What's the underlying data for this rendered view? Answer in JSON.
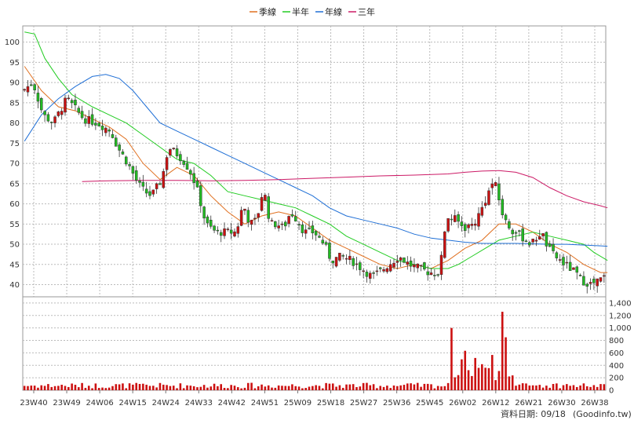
{
  "chart_data": {
    "type": "candlestick",
    "legend": [
      {
        "name": "季線",
        "color": "#e07020"
      },
      {
        "name": "半年",
        "color": "#22cc22"
      },
      {
        "name": "年線",
        "color": "#1f6fd6"
      },
      {
        "name": "三年",
        "color": "#cc1a66"
      }
    ],
    "price_axis": {
      "min": 37,
      "max": 104,
      "ticks": [
        40,
        45,
        50,
        55,
        60,
        65,
        70,
        75,
        80,
        85,
        90,
        95,
        100
      ]
    },
    "volume_axis": {
      "min": 0,
      "max": 1500,
      "ticks": [
        0,
        200,
        400,
        600,
        800,
        1000,
        1200,
        1400
      ],
      "tick_labels": [
        "0",
        "200",
        "400",
        "600",
        "800",
        "1,000",
        "1,200",
        "1,400"
      ]
    },
    "x_labels": [
      "23W40",
      "23W49",
      "24W06",
      "24W15",
      "24W24",
      "24W33",
      "24W42",
      "24W51",
      "25W09",
      "25W18",
      "25W27",
      "25W36",
      "25W45",
      "26W02",
      "26W12",
      "26W21",
      "26W30",
      "26W38"
    ],
    "bar_count": 157,
    "up_color": "#cc1111",
    "down_color": "#22bb22",
    "close_anchors": [
      [
        0,
        88
      ],
      [
        3,
        90
      ],
      [
        6,
        82
      ],
      [
        9,
        80
      ],
      [
        13,
        86
      ],
      [
        18,
        81
      ],
      [
        22,
        80
      ],
      [
        26,
        78
      ],
      [
        28,
        74
      ],
      [
        31,
        70
      ],
      [
        34,
        65
      ],
      [
        36,
        63
      ],
      [
        38,
        62
      ],
      [
        41,
        66
      ],
      [
        43,
        74
      ],
      [
        46,
        72
      ],
      [
        48,
        70
      ],
      [
        50,
        67
      ],
      [
        52,
        62
      ],
      [
        54,
        55
      ],
      [
        57,
        53
      ],
      [
        60,
        53
      ],
      [
        63,
        53
      ],
      [
        65,
        60
      ],
      [
        67,
        55
      ],
      [
        69,
        56
      ],
      [
        71,
        64
      ],
      [
        73,
        55
      ],
      [
        75,
        55
      ],
      [
        77,
        54
      ],
      [
        79,
        58
      ],
      [
        81,
        56
      ],
      [
        83,
        53
      ],
      [
        86,
        53
      ],
      [
        89,
        50
      ],
      [
        91,
        46
      ],
      [
        94,
        47
      ],
      [
        97,
        46
      ],
      [
        100,
        44
      ],
      [
        103,
        42
      ],
      [
        105,
        43
      ],
      [
        108,
        45
      ],
      [
        111,
        47
      ],
      [
        114,
        45
      ],
      [
        117,
        44
      ],
      [
        120,
        43
      ],
      [
        123,
        43
      ],
      [
        125,
        57
      ],
      [
        128,
        56
      ],
      [
        130,
        54
      ],
      [
        133,
        55
      ],
      [
        135,
        58
      ],
      [
        137,
        62
      ],
      [
        139,
        66
      ],
      [
        142,
        56
      ],
      [
        145,
        53
      ],
      [
        147,
        52
      ],
      [
        150,
        50
      ],
      [
        153,
        53
      ],
      [
        155,
        49
      ],
      [
        157,
        47
      ],
      [
        160,
        45
      ],
      [
        163,
        43
      ],
      [
        165,
        41
      ],
      [
        168,
        40
      ],
      [
        172,
        42
      ]
    ],
    "ma_series": [
      {
        "name": "季線",
        "points": [
          [
            0,
            94
          ],
          [
            5,
            88
          ],
          [
            10,
            84
          ],
          [
            15,
            83
          ],
          [
            20,
            81
          ],
          [
            25,
            79
          ],
          [
            30,
            76
          ],
          [
            35,
            70
          ],
          [
            40,
            66
          ],
          [
            45,
            69
          ],
          [
            50,
            67
          ],
          [
            55,
            62
          ],
          [
            60,
            58
          ],
          [
            65,
            55
          ],
          [
            70,
            57
          ],
          [
            75,
            58
          ],
          [
            80,
            57
          ],
          [
            85,
            54
          ],
          [
            90,
            51
          ],
          [
            95,
            49
          ],
          [
            100,
            47
          ],
          [
            105,
            45
          ],
          [
            110,
            44
          ],
          [
            115,
            45
          ],
          [
            120,
            44
          ],
          [
            125,
            46
          ],
          [
            130,
            49
          ],
          [
            135,
            51
          ],
          [
            140,
            55
          ],
          [
            145,
            55
          ],
          [
            150,
            53
          ],
          [
            155,
            50
          ],
          [
            160,
            48
          ],
          [
            165,
            45
          ],
          [
            170,
            43
          ],
          [
            172,
            43
          ]
        ]
      },
      {
        "name": "半年",
        "points": [
          [
            0,
            102.5
          ],
          [
            3,
            102
          ],
          [
            6,
            96
          ],
          [
            10,
            91
          ],
          [
            14,
            87
          ],
          [
            20,
            84
          ],
          [
            25,
            82
          ],
          [
            30,
            80
          ],
          [
            35,
            77
          ],
          [
            40,
            74
          ],
          [
            45,
            71
          ],
          [
            50,
            70
          ],
          [
            55,
            67
          ],
          [
            60,
            63
          ],
          [
            65,
            62
          ],
          [
            70,
            61
          ],
          [
            75,
            60
          ],
          [
            80,
            59
          ],
          [
            85,
            57
          ],
          [
            90,
            55
          ],
          [
            95,
            52
          ],
          [
            100,
            50
          ],
          [
            105,
            48
          ],
          [
            110,
            46
          ],
          [
            115,
            45
          ],
          [
            120,
            44
          ],
          [
            125,
            44
          ],
          [
            128,
            45
          ],
          [
            132,
            47
          ],
          [
            136,
            49
          ],
          [
            140,
            51
          ],
          [
            145,
            52
          ],
          [
            150,
            53
          ],
          [
            155,
            52
          ],
          [
            160,
            51
          ],
          [
            165,
            50
          ],
          [
            168,
            48
          ],
          [
            172,
            46
          ]
        ]
      },
      {
        "name": "年線",
        "points": [
          [
            0,
            75.5
          ],
          [
            5,
            82
          ],
          [
            10,
            86
          ],
          [
            15,
            89
          ],
          [
            20,
            91.5
          ],
          [
            24,
            92
          ],
          [
            28,
            91
          ],
          [
            32,
            88
          ],
          [
            36,
            84
          ],
          [
            40,
            80
          ],
          [
            45,
            78
          ],
          [
            50,
            76
          ],
          [
            55,
            74
          ],
          [
            60,
            72
          ],
          [
            65,
            70
          ],
          [
            70,
            68
          ],
          [
            75,
            66
          ],
          [
            80,
            64
          ],
          [
            85,
            62
          ],
          [
            90,
            59
          ],
          [
            95,
            57
          ],
          [
            100,
            56
          ],
          [
            105,
            55
          ],
          [
            110,
            54
          ],
          [
            115,
            52.5
          ],
          [
            120,
            51.5
          ],
          [
            125,
            51
          ],
          [
            130,
            50.5
          ],
          [
            135,
            50.2
          ],
          [
            140,
            50.2
          ],
          [
            145,
            50.2
          ],
          [
            150,
            50.1
          ],
          [
            155,
            50
          ],
          [
            160,
            50
          ],
          [
            165,
            49.8
          ],
          [
            170,
            49.6
          ],
          [
            172,
            49.5
          ]
        ]
      },
      {
        "name": "三年",
        "points": [
          [
            17,
            65.5
          ],
          [
            25,
            65.7
          ],
          [
            35,
            65.8
          ],
          [
            45,
            65.8
          ],
          [
            55,
            65.7
          ],
          [
            65,
            65.8
          ],
          [
            75,
            66
          ],
          [
            85,
            66.3
          ],
          [
            95,
            66.6
          ],
          [
            105,
            66.9
          ],
          [
            115,
            67.1
          ],
          [
            125,
            67.4
          ],
          [
            130,
            67.8
          ],
          [
            135,
            68.1
          ],
          [
            140,
            68.2
          ],
          [
            145,
            67.8
          ],
          [
            150,
            66.5
          ],
          [
            155,
            64
          ],
          [
            160,
            62
          ],
          [
            165,
            60.5
          ],
          [
            170,
            59.5
          ],
          [
            172,
            59
          ]
        ]
      }
    ]
  },
  "footer": {
    "data_date_label": "資料日期: 09/18",
    "source_label": "(Goodinfo.tw)"
  }
}
